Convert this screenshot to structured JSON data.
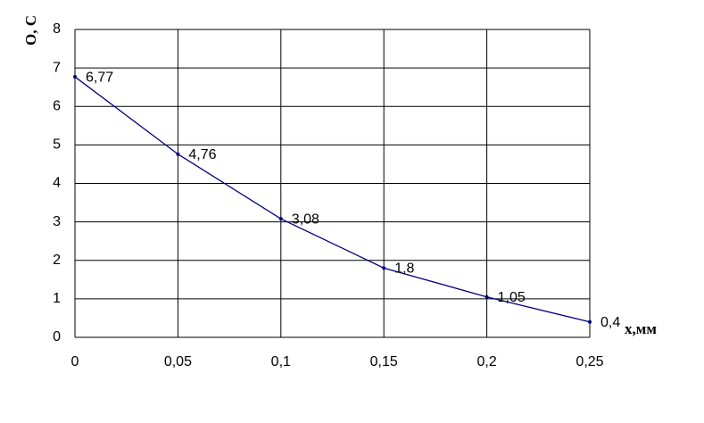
{
  "chart_data": {
    "type": "line",
    "x_label": "x,мм",
    "y_label": "O, C",
    "x": [
      0,
      0.05,
      0.1,
      0.15,
      0.2,
      0.25
    ],
    "series": [
      {
        "name": null,
        "color": "#000080",
        "values": [
          6.77,
          4.76,
          3.08,
          1.8,
          1.05,
          0.4
        ],
        "value_labels": [
          "6,77",
          "4,76",
          "3,08",
          "1,8",
          "1,05",
          "0,4"
        ]
      }
    ],
    "xlim": [
      0,
      0.25
    ],
    "xticks": [
      0,
      {
        "value": 0.05,
        "label": "0,05"
      },
      {
        "value": 0.1,
        "label": "0,1"
      },
      {
        "value": 0.15,
        "label": "0,15"
      },
      {
        "value": 0.2,
        "label": "0,2"
      },
      {
        "value": 0.25,
        "label": "0,25"
      }
    ],
    "ylim": [
      0,
      8
    ],
    "yticks": [
      0,
      1,
      2,
      3,
      4,
      5,
      6,
      7,
      8
    ],
    "grid": true
  }
}
